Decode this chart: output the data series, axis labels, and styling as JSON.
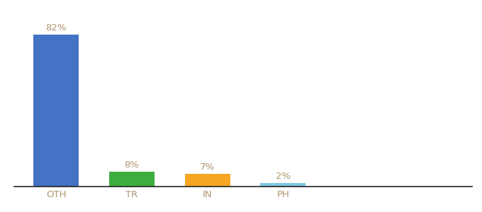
{
  "categories": [
    "OTH",
    "TR",
    "IN",
    "PH"
  ],
  "values": [
    82,
    8,
    7,
    2
  ],
  "bar_colors": [
    "#4472c4",
    "#3dae3d",
    "#f5a623",
    "#7ec8e3"
  ],
  "label_color": "#b0956e",
  "axis_line_color": "#222222",
  "background_color": "#ffffff",
  "label_fontsize": 9.5,
  "tick_fontsize": 9.5,
  "ylim": [
    0,
    95
  ],
  "bar_width": 0.6,
  "x_positions": [
    0,
    1,
    2,
    3
  ],
  "xlim": [
    -0.55,
    5.5
  ]
}
